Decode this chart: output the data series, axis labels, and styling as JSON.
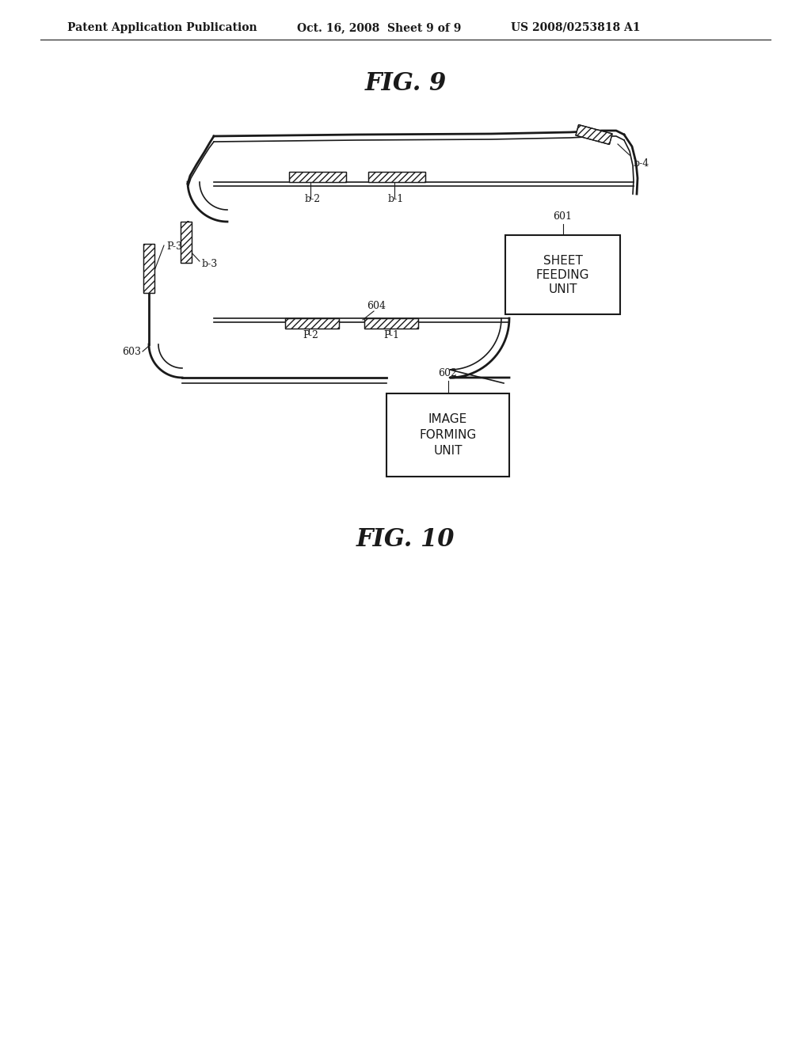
{
  "bg_color": "#ffffff",
  "header_left": "Patent Application Publication",
  "header_mid": "Oct. 16, 2008  Sheet 9 of 9",
  "header_right": "US 2008/0253818 A1",
  "fig9_title": "FIG. 9",
  "fig10_title": "FIG. 10",
  "line_color": "#1a1a1a"
}
